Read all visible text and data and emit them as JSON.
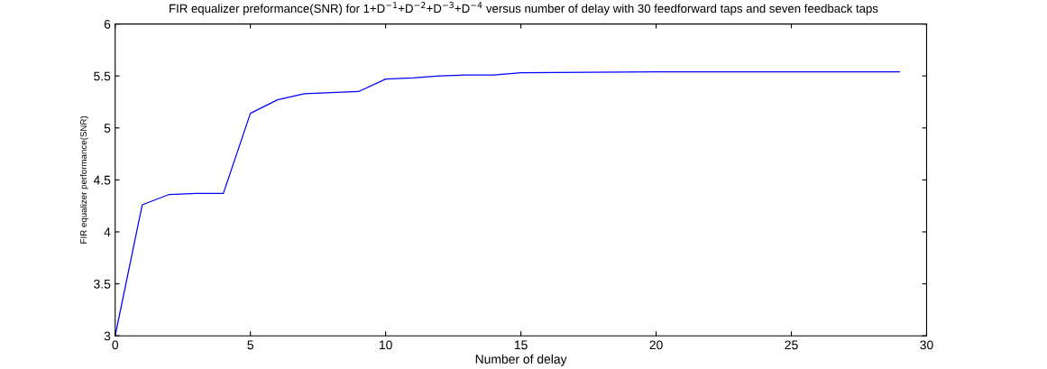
{
  "chart_data": {
    "type": "line",
    "title": "FIR equalizer preformance(SNR) for 1+D$^{−1}$+D$^{−2}$+D$^{−3}$+D$^{−4}$ versus number of delay with 30 feedforward taps and seven feedback taps",
    "xlabel": "Number of delay",
    "ylabel": "FIR equalizer performance(SNR)",
    "x": [
      0,
      1,
      2,
      3,
      4,
      5,
      6,
      7,
      8,
      9,
      10,
      11,
      12,
      13,
      14,
      15,
      20,
      25,
      29
    ],
    "series": [
      {
        "color": "#0000ff",
        "values": [
          3.0,
          4.26,
          4.36,
          4.37,
          4.37,
          5.14,
          5.27,
          5.33,
          5.34,
          5.35,
          5.47,
          5.48,
          5.5,
          5.51,
          5.51,
          5.53,
          5.54,
          5.54,
          5.54
        ]
      }
    ],
    "xlim": [
      0,
      30
    ],
    "xticks": [
      0,
      5,
      10,
      15,
      20,
      25,
      30
    ],
    "ylim": [
      3,
      6
    ],
    "yticks": [
      3,
      3.5,
      4,
      4.5,
      5,
      5.5,
      6
    ],
    "grid": false,
    "marker": "none",
    "line_style": "solid"
  }
}
